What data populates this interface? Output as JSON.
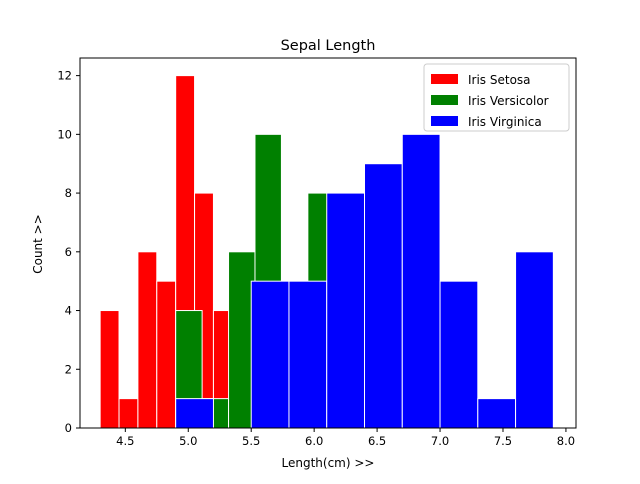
{
  "chart_data": {
    "type": "bar",
    "title": "Sepal Length",
    "xlabel": "Length(cm) >>",
    "ylabel": "Count >>",
    "xlim": [
      4.14,
      8.08
    ],
    "ylim": [
      0,
      12.6
    ],
    "xticks": [
      4.5,
      5.0,
      5.5,
      6.0,
      6.5,
      7.0,
      7.5,
      8.0
    ],
    "yticks": [
      0,
      2,
      4,
      6,
      8,
      10,
      12
    ],
    "legend_position": "top-right",
    "series": [
      {
        "name": "Iris Setosa",
        "color": "#ff0000",
        "bins": [
          {
            "x0": 4.3,
            "x1": 4.45,
            "count": 4
          },
          {
            "x0": 4.45,
            "x1": 4.6,
            "count": 1
          },
          {
            "x0": 4.6,
            "x1": 4.75,
            "count": 6
          },
          {
            "x0": 4.75,
            "x1": 4.9,
            "count": 5
          },
          {
            "x0": 4.9,
            "x1": 5.05,
            "count": 12
          },
          {
            "x0": 5.05,
            "x1": 5.2,
            "count": 8
          },
          {
            "x0": 5.2,
            "x1": 5.35,
            "count": 4
          },
          {
            "x0": 5.35,
            "x1": 5.5,
            "count": 6
          },
          {
            "x0": 5.5,
            "x1": 5.65,
            "count": 1
          },
          {
            "x0": 5.65,
            "x1": 5.8,
            "count": 3
          }
        ]
      },
      {
        "name": "Iris Versicolor",
        "color": "#008000",
        "bins": [
          {
            "x0": 4.9,
            "x1": 5.11,
            "count": 4
          },
          {
            "x0": 5.11,
            "x1": 5.32,
            "count": 1
          },
          {
            "x0": 5.32,
            "x1": 5.53,
            "count": 6
          },
          {
            "x0": 5.53,
            "x1": 5.74,
            "count": 10
          },
          {
            "x0": 5.74,
            "x1": 5.95,
            "count": 5
          },
          {
            "x0": 5.95,
            "x1": 6.16,
            "count": 8
          },
          {
            "x0": 6.16,
            "x1": 6.37,
            "count": 6
          }
        ]
      },
      {
        "name": "Iris Virginica",
        "color": "#0000ff",
        "bins": [
          {
            "x0": 4.9,
            "x1": 5.2,
            "count": 1
          },
          {
            "x0": 5.2,
            "x1": 5.5,
            "count": 0
          },
          {
            "x0": 5.5,
            "x1": 5.8,
            "count": 5
          },
          {
            "x0": 5.8,
            "x1": 6.1,
            "count": 5
          },
          {
            "x0": 6.1,
            "x1": 6.4,
            "count": 8
          },
          {
            "x0": 6.4,
            "x1": 6.7,
            "count": 9
          },
          {
            "x0": 6.7,
            "x1": 7.0,
            "count": 10
          },
          {
            "x0": 7.0,
            "x1": 7.3,
            "count": 5
          },
          {
            "x0": 7.3,
            "x1": 7.6,
            "count": 1
          },
          {
            "x0": 7.6,
            "x1": 7.9,
            "count": 6
          }
        ]
      }
    ]
  }
}
